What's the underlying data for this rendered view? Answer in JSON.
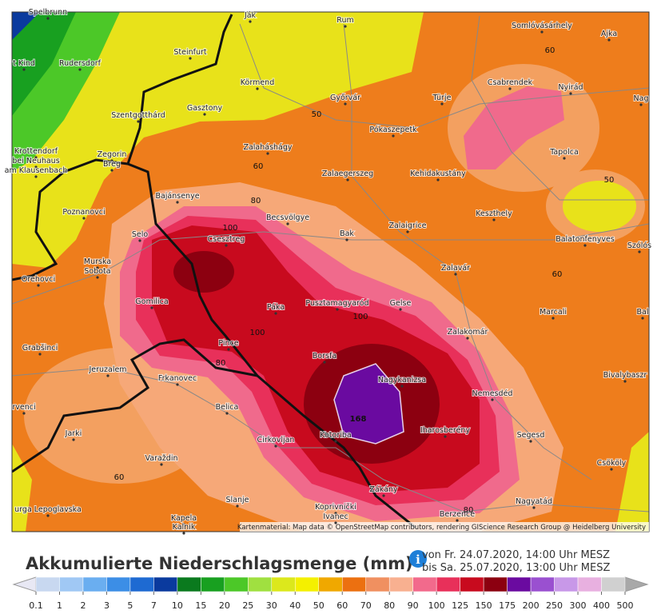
{
  "map": {
    "places": [
      "Spelbrunn",
      "Ják",
      "Rum",
      "Somlóvásárhely",
      "Ajka",
      "t Kind",
      "Rudersdorf",
      "Steinfurt",
      "Körmend",
      "Győrvár",
      "Türje",
      "Csabrendek",
      "Nyirád",
      "Nag",
      "Szentgotthárd",
      "Gasztony",
      "Pókaszepetk",
      "Krottendorf",
      "bei Neuhaus",
      "am Klausenbach",
      "Zegorin",
      "Breg",
      "Zalaháshágy",
      "Tapolca",
      "Zalaegerszeg",
      "Kehidakustány",
      "Bajánsenye",
      "Poznanovci",
      "Becsvölgye",
      "Keszthely",
      "Zalaigrice",
      "Selo",
      "Bak",
      "Balatonfenyves",
      "Szólós",
      "Csesztreg",
      "Murska",
      "Sobota",
      "Orehovci",
      "Zalavár",
      "Gomilica",
      "Páka",
      "Pusztamagyaród",
      "Gelse",
      "Marcali",
      "Bal",
      "Zalakomár",
      "Grabšinci",
      "Pince",
      "Borsfa",
      "Nagykanizsa",
      "Jeruzalem",
      "Frkanovec",
      "Bivalybaszr",
      "Nemesdéd",
      "rvenci",
      "Belica",
      "Jarki",
      "Iharosberény",
      "Segesd",
      "Cirkovljan",
      "Kotoriba",
      "Varaždin",
      "Csököly",
      "Zákány",
      "Slanje",
      "Koprivnički",
      "Ivanec",
      "Nagyatád",
      "urga Lepoglavska",
      "Berzence",
      "Kapela",
      "Kalnik"
    ],
    "contour_labels": [
      60,
      50,
      60,
      80,
      50,
      100,
      60,
      100,
      100,
      80,
      168,
      60,
      80
    ],
    "attribution": "Kartenmaterial: Map data © OpenStreetMap contributors, rendering GIScience Research Group @ Heidelberg University"
  },
  "legend": {
    "title": "Akkumulierte Niederschlagsmenge (mm)",
    "period_from": "von Fr. 24.07.2020, 14:00 Uhr MESZ",
    "period_to": "bis Sa. 25.07.2020, 13:00 Uhr MESZ",
    "values": [
      0.1,
      1,
      2,
      3,
      5,
      7,
      10,
      15,
      20,
      25,
      30,
      40,
      50,
      60,
      70,
      80,
      90,
      100,
      125,
      150,
      175,
      200,
      250,
      300,
      400,
      500
    ],
    "colors": [
      "#e8e8f4",
      "#c8d8f0",
      "#a0c8f4",
      "#6aaef0",
      "#3c8ee6",
      "#1e6ad2",
      "#0a3a9e",
      "#0a7a1e",
      "#18a020",
      "#4cc828",
      "#a0e040",
      "#dce81c",
      "#f4f000",
      "#f0a800",
      "#ec7010",
      "#f09060",
      "#f8b090",
      "#f26a8c",
      "#e8305a",
      "#c80a1e",
      "#8c0010",
      "#6a0aa0",
      "#9a50d0",
      "#c898e8",
      "#e8b0e0",
      "#d0d0d0",
      "#a8a8a8"
    ]
  }
}
